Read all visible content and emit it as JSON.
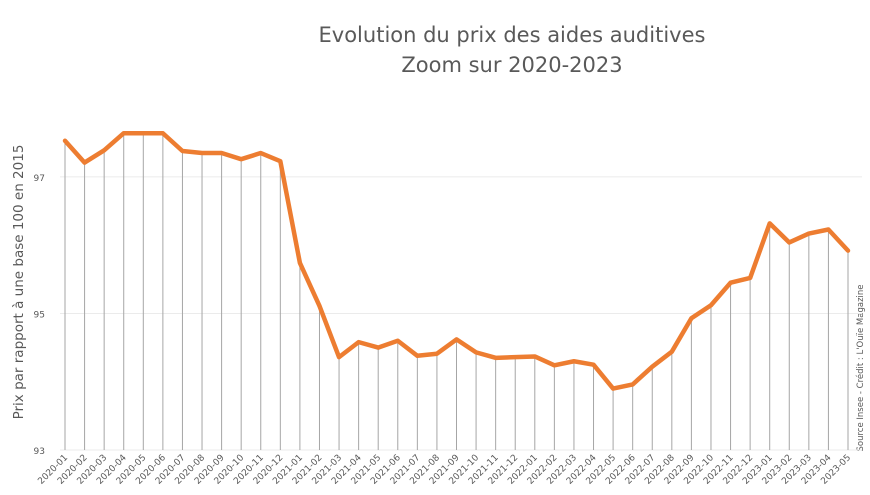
{
  "chart_data": {
    "type": "line",
    "title": "Evolution du prix des aides auditives",
    "subtitle": "Zoom sur 2020-2023",
    "xlabel": "",
    "ylabel": "Prix par rapport à une base 100 en 2015",
    "ylim": [
      93,
      98.2
    ],
    "yticks": [
      93,
      95,
      97
    ],
    "grid": true,
    "source_note": "Source Insee - Crédit : L'Ouïe Magazine",
    "colors": {
      "line": "#ED7D31",
      "drop_lines": "#A6A6A6",
      "grid": "#EBEBEB",
      "text": "#595959"
    },
    "categories": [
      "2020-01",
      "2020-02",
      "2020-03",
      "2020-04",
      "2020-05",
      "2020-06",
      "2020-07",
      "2020-08",
      "2020-09",
      "2020-10",
      "2020-11",
      "2020-12",
      "2021-01",
      "2021-02",
      "2021-03",
      "2021-04",
      "2021-05",
      "2021-06",
      "2021-07",
      "2021-08",
      "2021-09",
      "2021-10",
      "2021-11",
      "2021-12",
      "2022-01",
      "2022-02",
      "2022-03",
      "2022-04",
      "2022-05",
      "2022-06",
      "2022-07",
      "2022-08",
      "2022-09",
      "2022-10",
      "2022-11",
      "2022-12",
      "2023-01",
      "2023-02",
      "2023-03",
      "2023-04",
      "2023-05"
    ],
    "values": [
      97.53,
      97.21,
      97.39,
      97.64,
      97.64,
      97.64,
      97.38,
      97.35,
      97.35,
      97.26,
      97.35,
      97.23,
      95.74,
      95.11,
      94.36,
      94.58,
      94.5,
      94.6,
      94.38,
      94.41,
      94.62,
      94.43,
      94.35,
      94.36,
      94.37,
      94.24,
      94.3,
      94.25,
      93.9,
      93.96,
      94.22,
      94.44,
      94.93,
      95.12,
      95.45,
      95.52,
      96.32,
      96.04,
      96.17,
      96.23,
      95.92
    ]
  }
}
